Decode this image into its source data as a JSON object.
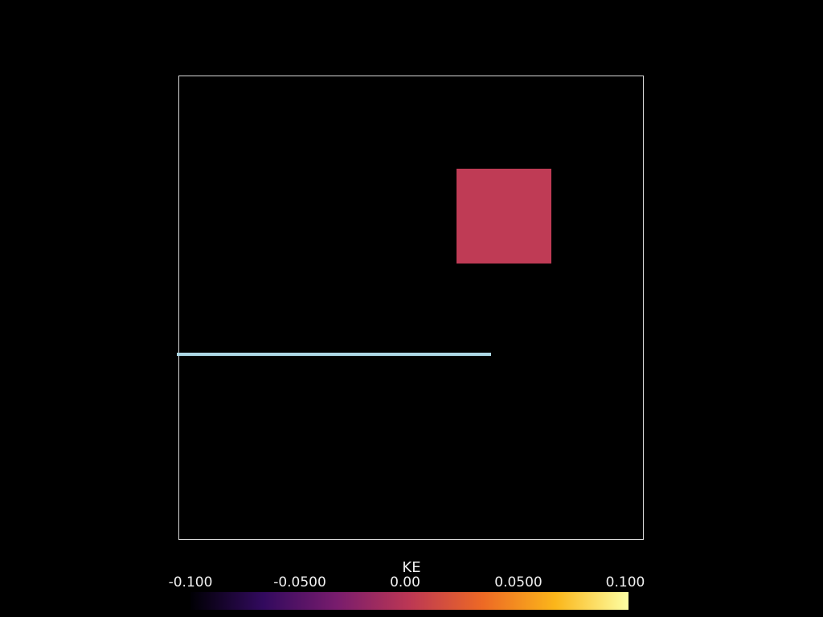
{
  "scene": {
    "background_color": "#000000",
    "outline_color": "#d9d9d9",
    "block_color": "#bf3b55",
    "rod_color": "#add8e6"
  },
  "colorbar": {
    "title": "KE",
    "colormap": "inferno",
    "range": [
      -0.1,
      0.1
    ],
    "ticks": [
      "-0.100",
      "-0.0500",
      "0.00",
      "0.0500",
      "0.100"
    ],
    "gradient_stops": [
      "#000004",
      "#320a5e",
      "#781c6d",
      "#bc3754",
      "#ed6925",
      "#fbb61a",
      "#fcffa4"
    ]
  }
}
